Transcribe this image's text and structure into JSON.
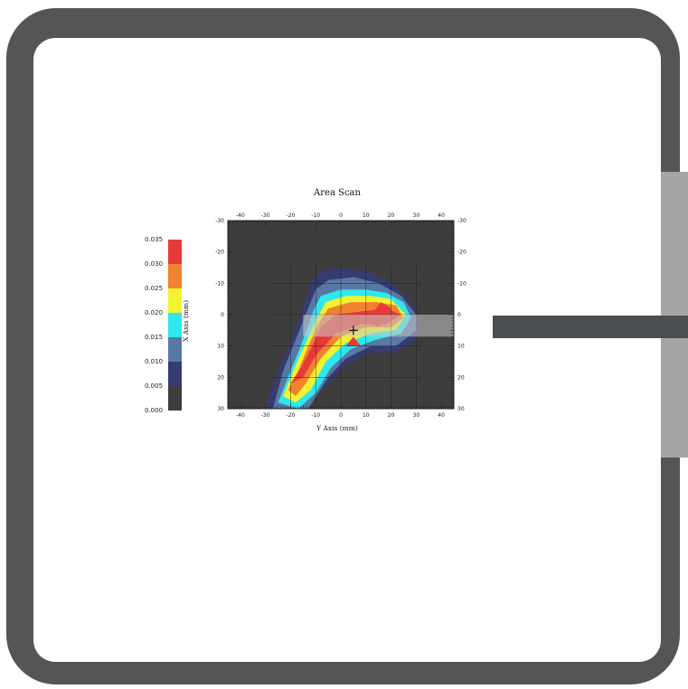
{
  "colors": {
    "frame": "#555555",
    "probe_mount": "#a5a5a5",
    "plot_background": "#3d3d3d",
    "levels": [
      "#3d3d3d",
      "#363c70",
      "#5878a6",
      "#2ee8ee",
      "#f2f22e",
      "#f08230",
      "#e63a3a"
    ]
  },
  "chart_data": {
    "type": "heatmap",
    "title": "Area Scan",
    "xlabel": "Y Axis (mm)",
    "ylabel": "X Axis (mm)",
    "xlim": [
      -45,
      45
    ],
    "ylim": [
      -30,
      30
    ],
    "y_inverted": true,
    "x_ticks": [
      "-40",
      "-30",
      "-20",
      "-10",
      "0",
      "10",
      "20",
      "30",
      "40"
    ],
    "y_ticks": [
      "-30",
      "-20",
      "-10",
      "0",
      "10",
      "20",
      "30"
    ],
    "colorbar": {
      "levels": [
        "0.000",
        "0.005",
        "0.010",
        "0.015",
        "0.020",
        "0.025",
        "0.030",
        "0.035"
      ]
    },
    "contours": [
      {
        "min": 0.005,
        "points": [
          [
            -30,
            30
          ],
          [
            -25,
            18
          ],
          [
            -20,
            8
          ],
          [
            -15,
            -2
          ],
          [
            -12,
            -10
          ],
          [
            -8,
            -14
          ],
          [
            0,
            -15
          ],
          [
            10,
            -14
          ],
          [
            20,
            -10
          ],
          [
            28,
            -4
          ],
          [
            32,
            2
          ],
          [
            30,
            8
          ],
          [
            22,
            12
          ],
          [
            12,
            12
          ],
          [
            2,
            16
          ],
          [
            -5,
            22
          ],
          [
            -14,
            30
          ]
        ]
      },
      {
        "min": 0.01,
        "points": [
          [
            -27,
            30
          ],
          [
            -23,
            18
          ],
          [
            -18,
            8
          ],
          [
            -13,
            -2
          ],
          [
            -10,
            -8
          ],
          [
            -5,
            -11
          ],
          [
            5,
            -12
          ],
          [
            15,
            -10
          ],
          [
            24,
            -6
          ],
          [
            30,
            0
          ],
          [
            30,
            5
          ],
          [
            22,
            10
          ],
          [
            12,
            10
          ],
          [
            2,
            14
          ],
          [
            -5,
            20
          ],
          [
            -13,
            30
          ]
        ]
      },
      {
        "min": 0.015,
        "points": [
          [
            -25,
            28
          ],
          [
            -20,
            18
          ],
          [
            -15,
            8
          ],
          [
            -11,
            -1
          ],
          [
            -8,
            -6
          ],
          [
            0,
            -8
          ],
          [
            10,
            -8
          ],
          [
            18,
            -7
          ],
          [
            25,
            -4
          ],
          [
            28,
            1
          ],
          [
            24,
            6
          ],
          [
            14,
            8
          ],
          [
            4,
            11
          ],
          [
            -4,
            17
          ],
          [
            -10,
            25
          ],
          [
            -17,
            30
          ]
        ]
      },
      {
        "min": 0.02,
        "points": [
          [
            -23,
            26
          ],
          [
            -19,
            18
          ],
          [
            -14,
            9
          ],
          [
            -10,
            2
          ],
          [
            -6,
            -4
          ],
          [
            2,
            -6
          ],
          [
            12,
            -6
          ],
          [
            20,
            -5
          ],
          [
            26,
            0
          ],
          [
            22,
            5
          ],
          [
            12,
            6
          ],
          [
            2,
            9
          ],
          [
            -6,
            15
          ],
          [
            -12,
            24
          ],
          [
            -18,
            28
          ]
        ]
      },
      {
        "min": 0.025,
        "points": [
          [
            -21,
            24
          ],
          [
            -17,
            18
          ],
          [
            -13,
            10
          ],
          [
            -9,
            3
          ],
          [
            -5,
            -2
          ],
          [
            4,
            -4
          ],
          [
            14,
            -4
          ],
          [
            22,
            -3
          ],
          [
            25,
            1
          ],
          [
            20,
            4
          ],
          [
            10,
            4
          ],
          [
            0,
            7
          ],
          [
            -8,
            14
          ],
          [
            -14,
            22
          ],
          [
            -18,
            26
          ]
        ]
      },
      {
        "min": 0.03,
        "points": [
          [
            -20,
            22
          ],
          [
            -16,
            17
          ],
          [
            -12,
            11
          ],
          [
            -8,
            4
          ],
          [
            -2,
            0
          ],
          [
            8,
            -1
          ],
          [
            18,
            -2
          ],
          [
            24,
            0
          ],
          [
            18,
            3
          ],
          [
            8,
            3
          ],
          [
            -2,
            6
          ],
          [
            -10,
            13
          ],
          [
            -15,
            20
          ]
        ]
      },
      {
        "min": 0.035,
        "points": [
          [
            10,
            2
          ],
          [
            16,
            -4
          ],
          [
            20,
            -2
          ],
          [
            15,
            4
          ]
        ]
      },
      {
        "min": 0.035,
        "points": [
          [
            2,
            10
          ],
          [
            5,
            7
          ],
          [
            8,
            10
          ]
        ]
      }
    ],
    "marker": {
      "x": 5,
      "y": 5
    }
  }
}
